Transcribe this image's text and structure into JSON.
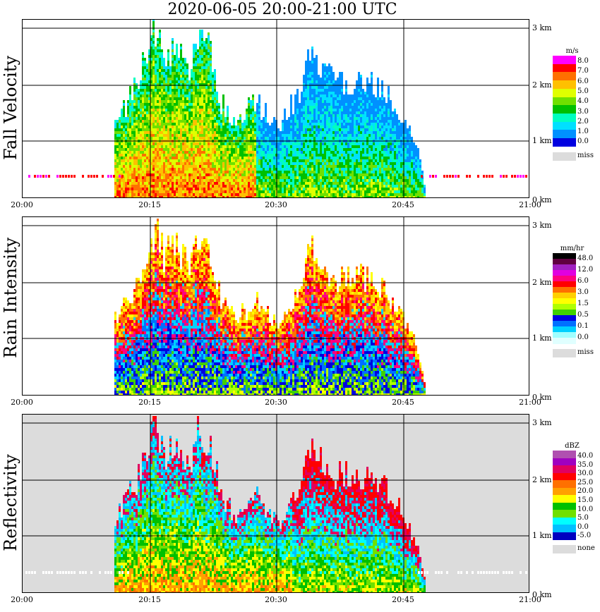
{
  "title": "2020-06-05   20:00-21:00 UTC",
  "xticks": [
    "20:00",
    "20:15",
    "20:30",
    "20:45",
    "21:00"
  ],
  "yticks": [
    "0 km",
    "1 km",
    "2 km",
    "3 km"
  ],
  "panels": [
    {
      "name": "fall-velocity",
      "label": "Fall Velocity",
      "background": "#ffffff",
      "colorbar": {
        "unit": "m/s",
        "colors": [
          "#ff00ff",
          "#ff0000",
          "#ff7000",
          "#ffc000",
          "#e0ff00",
          "#70e000",
          "#00c000",
          "#00ffc0",
          "#00e0ff",
          "#0090ff",
          "#0000e0"
        ],
        "labels": [
          "8.0",
          "7.0",
          "6.0",
          "5.0",
          "4.0",
          "3.0",
          "2.0",
          "1.0",
          "0.0"
        ],
        "miss_label": "miss"
      }
    },
    {
      "name": "rain-intensity",
      "label": "Rain Intensity",
      "background": "#ffffff",
      "colorbar": {
        "unit": "mm/hr",
        "colors": [
          "#000000",
          "#600040",
          "#a020c0",
          "#e000e0",
          "#ff0080",
          "#ff0000",
          "#ff7000",
          "#ffd000",
          "#ffff00",
          "#b0ff00",
          "#40d000",
          "#0000e0",
          "#0070ff",
          "#00d0ff",
          "#a0ffff",
          "#e0ffff"
        ],
        "labels": [
          "48.0",
          "12.0",
          "6.0",
          "3.0",
          "1.5",
          "0.5",
          "0.1",
          "0.0"
        ],
        "miss_label": "miss"
      }
    },
    {
      "name": "reflectivity",
      "label": "Reflectivity",
      "background": "#dcdcdc",
      "colorbar": {
        "unit": "dBZ",
        "colors": [
          "#b050b0",
          "#a000c0",
          "#e00060",
          "#ff0000",
          "#ff7000",
          "#ffa000",
          "#ffff00",
          "#00c000",
          "#70e000",
          "#00ffff",
          "#00c0ff",
          "#0000c0"
        ],
        "labels": [
          "40.0",
          "35.0",
          "30.0",
          "25.0",
          "20.0",
          "15.0",
          "10.0",
          "5.0",
          "0.0",
          "-5.0"
        ],
        "miss_label": "none"
      }
    }
  ],
  "chart_data": {
    "type": "heatmap",
    "title": "2020-06-05   20:00-21:00 UTC",
    "x_range": [
      "20:00",
      "21:00"
    ],
    "y_range_km": [
      0,
      3.2
    ],
    "grid": true,
    "legend": "colorbar right of each panel",
    "precip_period": [
      "20:11",
      "20:47"
    ],
    "max_echo_top_km": 3.2,
    "panels": [
      "Fall Velocity",
      "Rain Intensity",
      "Reflectivity"
    ]
  }
}
